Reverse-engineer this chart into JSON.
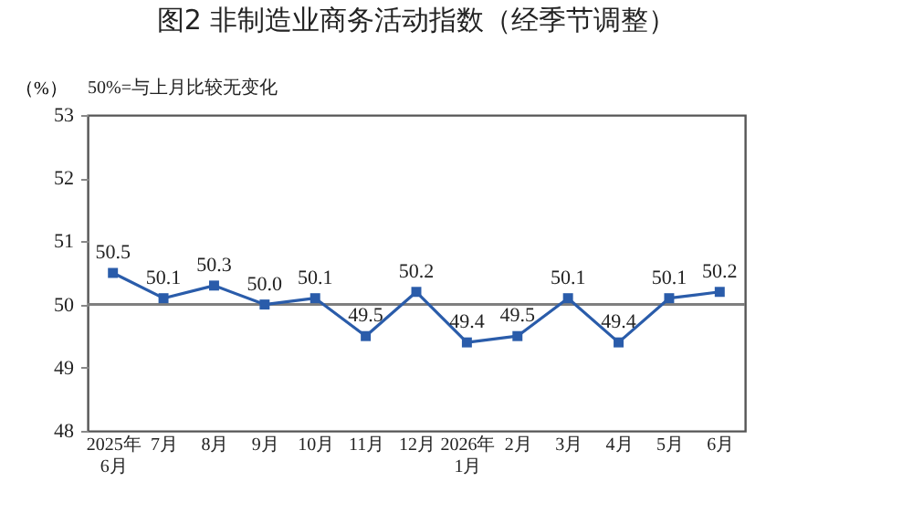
{
  "chart_data": {
    "type": "line",
    "title": "图2  非制造业商务活动指数（经季节调整）",
    "ylabel": "（%）",
    "annotations": [
      "50%=与上月比较无变化"
    ],
    "categories": [
      "2025年\n6月",
      "7月",
      "8月",
      "9月",
      "10月",
      "11月",
      "12月",
      "2026年\n1月",
      "2月",
      "3月",
      "4月",
      "5月",
      "6月"
    ],
    "series": [
      {
        "color": "#2a5caa",
        "values": [
          50.5,
          50.1,
          50.3,
          50.0,
          50.1,
          49.5,
          50.2,
          49.4,
          49.5,
          50.1,
          49.4,
          50.1,
          50.2
        ]
      }
    ],
    "ylim": [
      48,
      53
    ],
    "yticks": [
      48,
      49,
      50,
      51,
      52,
      53
    ],
    "grid": false,
    "legend": false,
    "marker": "square",
    "line_style": "solid",
    "value_labels": [
      "50.5",
      "50.1",
      "50.3",
      "50.0",
      "50.1",
      "49.5",
      "50.2",
      "49.4",
      "49.5",
      "50.1",
      "49.4",
      "50.1",
      "50.2"
    ],
    "ref_lines": [
      {
        "axis": "y",
        "value": 50,
        "color": "#7f7f7f"
      }
    ]
  }
}
